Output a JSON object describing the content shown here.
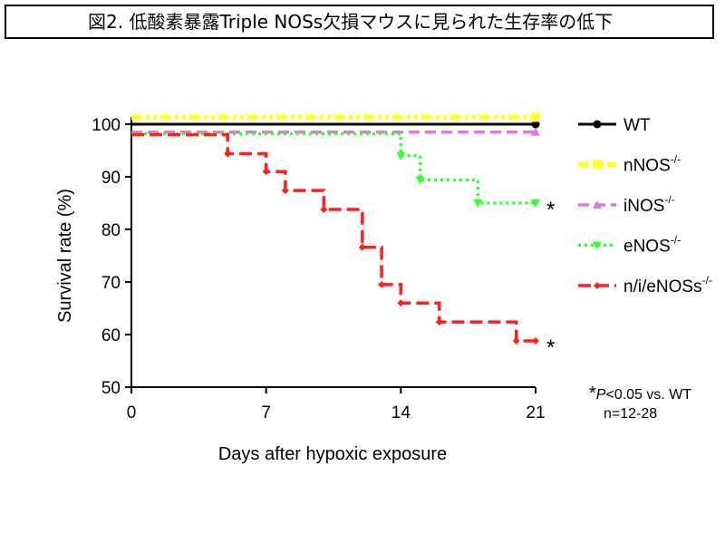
{
  "title": "図2. 低酸素暴露Triple NOSs欠損マウスに見られた生存率の低下",
  "chart_data": {
    "type": "line",
    "step": true,
    "xlabel": "Days after hypoxic exposure",
    "ylabel": "Survival rate (%)",
    "xlim": [
      0,
      21
    ],
    "ylim": [
      50,
      100
    ],
    "xticks": [
      0,
      7,
      14,
      21
    ],
    "yticks": [
      50,
      60,
      70,
      80,
      90,
      100
    ],
    "grid": false,
    "legend_position": "right",
    "series": [
      {
        "name": "WT",
        "sup": "",
        "color": "#000000",
        "dash": "",
        "width": 3,
        "marker": "circle",
        "x": [
          0,
          21
        ],
        "y": [
          100,
          100
        ],
        "marks": [
          21
        ],
        "significance": ""
      },
      {
        "name": "nNOS",
        "sup": "-/-",
        "color": "#ffff33",
        "dash": "12 4 4 4 4 4",
        "width": 6,
        "marker": "square",
        "x": [
          0,
          21
        ],
        "y": [
          101.3,
          101.3
        ],
        "marks": [
          21
        ],
        "significance": ""
      },
      {
        "name": "iNOS",
        "sup": "-/-",
        "color": "#e676dc",
        "dash": "12 6",
        "width": 3.5,
        "marker": "triangle-up",
        "x": [
          0,
          21
        ],
        "y": [
          98.5,
          98.5
        ],
        "marks": [
          21
        ],
        "significance": ""
      },
      {
        "name": "eNOS",
        "sup": "-/-",
        "color": "#33ff33",
        "dash": "3 4",
        "width": 3.5,
        "marker": "triangle-down",
        "x": [
          0,
          14,
          15,
          18,
          21
        ],
        "y": [
          98.2,
          94,
          89.4,
          85,
          85
        ],
        "marks": [
          14,
          15,
          18,
          21
        ],
        "significance": "*"
      },
      {
        "name": "n/i/eNOSs",
        "sup": "-/-",
        "color": "#ff1f1f",
        "dash": "14 6",
        "width": 3.5,
        "marker": "diamond",
        "x": [
          0,
          5,
          7,
          8,
          10,
          12,
          13,
          14,
          16,
          20,
          21
        ],
        "y": [
          98,
          94.4,
          91,
          87.4,
          83.8,
          76.6,
          69.5,
          66,
          62.4,
          58.8,
          58.8
        ],
        "marks": [
          5,
          7,
          8,
          10,
          12,
          13,
          14,
          16,
          20,
          21
        ],
        "significance": "*"
      }
    ],
    "annotations": {
      "star": "*",
      "p_label": "P",
      "p_text": "<0.05 vs. WT",
      "n_text": "n=12-28"
    }
  }
}
